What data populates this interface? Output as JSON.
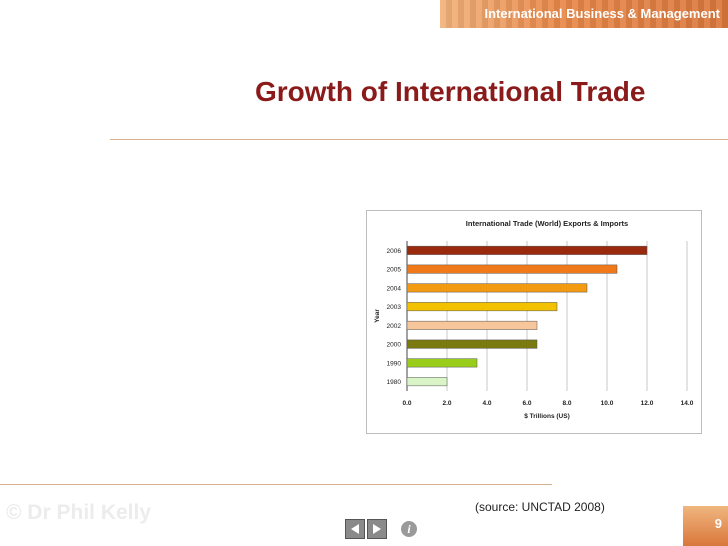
{
  "header": {
    "course_title": "International Business & Management"
  },
  "slide": {
    "title": "Growth of International Trade",
    "source_note": "(source: UNCTAD 2008)",
    "copyright": "© Dr Phil Kelly",
    "page_number": "9"
  },
  "colors": {
    "title": "#8b1a1a",
    "rule": "#d6b08a",
    "banner": "#e8894a"
  },
  "nav": {
    "prev_icon": "left-triangle-icon",
    "next_icon": "right-triangle-icon",
    "info_icon": "info-icon"
  },
  "chart_data": {
    "type": "bar",
    "orientation": "horizontal",
    "title": "International Trade (World) Exports & Imports",
    "xlabel": "$ Trillions (US)",
    "ylabel": "Year",
    "xlim": [
      0,
      14
    ],
    "x_ticks": [
      "0.0",
      "2.0",
      "4.0",
      "6.0",
      "8.0",
      "10.0",
      "12.0",
      "14.0"
    ],
    "grid": true,
    "categories": [
      "2006",
      "2005",
      "2004",
      "2003",
      "2002",
      "2000",
      "1990",
      "1980"
    ],
    "values": [
      12.0,
      10.5,
      9.0,
      7.5,
      6.5,
      6.5,
      3.5,
      2.0
    ],
    "bar_colors": [
      "#9a2a0e",
      "#f07a1a",
      "#f29a12",
      "#f2c100",
      "#f7c79b",
      "#7a7a10",
      "#9acd1a",
      "#d9f5c8"
    ]
  }
}
